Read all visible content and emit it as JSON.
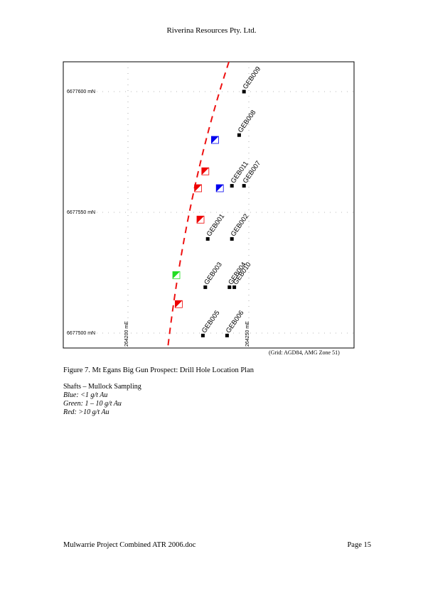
{
  "header": {
    "company": "Riverina Resources Pty. Ltd."
  },
  "map": {
    "northing_labels": [
      "6677600 mN",
      "6677550 mN",
      "6677500 mN"
    ],
    "easting_labels": [
      "264200 mE",
      "264250 mE"
    ],
    "drill_holes": [
      {
        "id": "GEB009",
        "e": 264248,
        "n": 6677600
      },
      {
        "id": "GEB008",
        "e": 264246,
        "n": 6677582
      },
      {
        "id": "GEB011",
        "e": 264243,
        "n": 6677561
      },
      {
        "id": "GEB007",
        "e": 264248,
        "n": 6677561
      },
      {
        "id": "GEB001",
        "e": 264233,
        "n": 6677539
      },
      {
        "id": "GEB002",
        "e": 264243,
        "n": 6677539
      },
      {
        "id": "GEB003",
        "e": 264232,
        "n": 6677519
      },
      {
        "id": "GEB004",
        "e": 264242,
        "n": 6677519
      },
      {
        "id": "GEB010",
        "e": 264244,
        "n": 6677519
      },
      {
        "id": "GEB005",
        "e": 264231,
        "n": 6677499
      },
      {
        "id": "GEB006",
        "e": 264241,
        "n": 6677499
      }
    ],
    "shafts": [
      {
        "e": 264236,
        "n": 6677580,
        "grade": "blue",
        "color": "#0000ee"
      },
      {
        "e": 264232,
        "n": 6677567,
        "grade": "red",
        "color": "#ee0000"
      },
      {
        "e": 264229,
        "n": 6677560,
        "grade": "red",
        "color": "#ee0000"
      },
      {
        "e": 264238,
        "n": 6677560,
        "grade": "blue",
        "color": "#0000ee"
      },
      {
        "e": 264230,
        "n": 6677547,
        "grade": "red",
        "color": "#ee0000"
      },
      {
        "e": 264220,
        "n": 6677524,
        "grade": "green",
        "color": "#22dd22"
      },
      {
        "e": 264221,
        "n": 6677512,
        "grade": "red",
        "color": "#ee0000"
      }
    ],
    "fault_color": "#ee1111",
    "grid_note": "(Grid: AGD84, AMG Zone 51)"
  },
  "caption": "Figure 7. Mt Egans Big Gun Prospect: Drill Hole Location Plan",
  "legend": {
    "title": "Shafts – Mullock Sampling",
    "items": [
      "Blue: <1 g/t Au",
      "Green: 1 – 10 g/t Au",
      "Red: >10 g/t Au"
    ]
  },
  "footer": {
    "left": "Mulwarrie Project Combined ATR 2006.doc",
    "right": "Page 15"
  }
}
